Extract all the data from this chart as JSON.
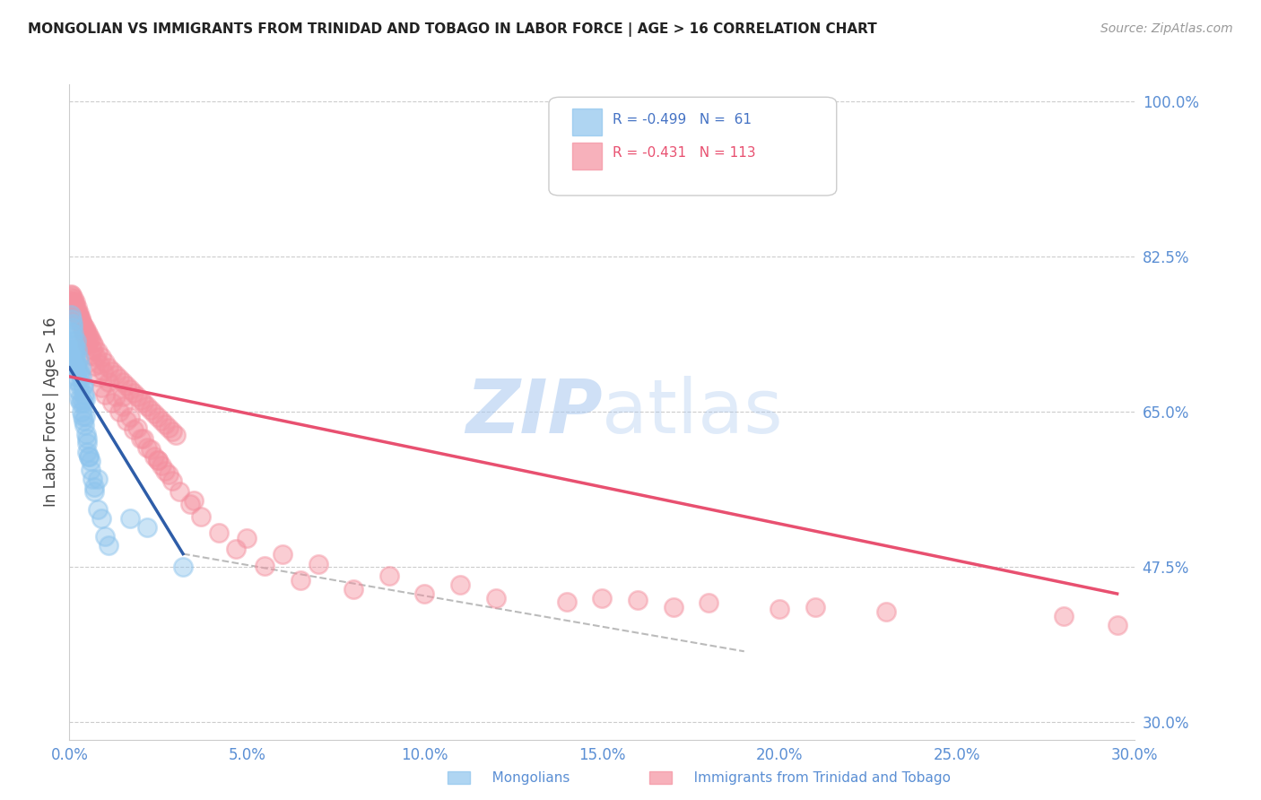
{
  "title": "MONGOLIAN VS IMMIGRANTS FROM TRINIDAD AND TOBAGO IN LABOR FORCE | AGE > 16 CORRELATION CHART",
  "source": "Source: ZipAtlas.com",
  "ylabel": "In Labor Force | Age > 16",
  "xlim": [
    0.0,
    0.3
  ],
  "ylim": [
    0.28,
    1.02
  ],
  "yticks": [
    0.3,
    0.475,
    0.65,
    0.825,
    1.0
  ],
  "ytick_labels": [
    "30.0%",
    "47.5%",
    "65.0%",
    "82.5%",
    "100.0%"
  ],
  "xticks": [
    0.0,
    0.05,
    0.1,
    0.15,
    0.2,
    0.25,
    0.3
  ],
  "xtick_labels": [
    "0.0%",
    "5.0%",
    "10.0%",
    "15.0%",
    "20.0%",
    "25.0%",
    "30.0%"
  ],
  "legend_R1": "-0.499",
  "legend_N1": "61",
  "legend_R2": "-0.431",
  "legend_N2": "113",
  "color_mongolian": "#8DC4ED",
  "color_trinidad": "#F4909F",
  "color_axis_labels": "#5B8FD4",
  "mongolian_x": [
    0.001,
    0.0012,
    0.0015,
    0.0018,
    0.002,
    0.0022,
    0.0025,
    0.0028,
    0.003,
    0.0032,
    0.0035,
    0.0038,
    0.004,
    0.0042,
    0.0045,
    0.0005,
    0.0008,
    0.001,
    0.0013,
    0.0016,
    0.0019,
    0.0022,
    0.0025,
    0.0028,
    0.0031,
    0.0034,
    0.0037,
    0.004,
    0.0043,
    0.0046,
    0.005,
    0.0055,
    0.006,
    0.0065,
    0.007,
    0.0015,
    0.002,
    0.0025,
    0.003,
    0.0035,
    0.004,
    0.0045,
    0.005,
    0.0055,
    0.006,
    0.007,
    0.008,
    0.009,
    0.01,
    0.011,
    0.0003,
    0.0006,
    0.0009,
    0.0012,
    0.0015,
    0.0018,
    0.005,
    0.008,
    0.017,
    0.022,
    0.032
  ],
  "mongolian_y": [
    0.75,
    0.73,
    0.72,
    0.71,
    0.73,
    0.72,
    0.7,
    0.71,
    0.695,
    0.7,
    0.69,
    0.68,
    0.68,
    0.67,
    0.665,
    0.74,
    0.735,
    0.72,
    0.71,
    0.7,
    0.69,
    0.685,
    0.675,
    0.665,
    0.66,
    0.65,
    0.645,
    0.64,
    0.635,
    0.625,
    0.615,
    0.6,
    0.595,
    0.575,
    0.56,
    0.72,
    0.705,
    0.695,
    0.68,
    0.665,
    0.66,
    0.645,
    0.62,
    0.6,
    0.585,
    0.565,
    0.54,
    0.53,
    0.51,
    0.5,
    0.76,
    0.755,
    0.745,
    0.738,
    0.725,
    0.715,
    0.605,
    0.575,
    0.53,
    0.52,
    0.475
  ],
  "trinidad_x": [
    0.0005,
    0.001,
    0.0015,
    0.002,
    0.0025,
    0.003,
    0.0035,
    0.004,
    0.0045,
    0.005,
    0.0055,
    0.006,
    0.0065,
    0.007,
    0.008,
    0.009,
    0.01,
    0.011,
    0.012,
    0.013,
    0.014,
    0.015,
    0.016,
    0.017,
    0.018,
    0.019,
    0.02,
    0.021,
    0.022,
    0.023,
    0.024,
    0.025,
    0.026,
    0.027,
    0.028,
    0.029,
    0.03,
    0.001,
    0.002,
    0.003,
    0.004,
    0.005,
    0.006,
    0.007,
    0.008,
    0.009,
    0.01,
    0.012,
    0.014,
    0.016,
    0.018,
    0.02,
    0.022,
    0.024,
    0.026,
    0.028,
    0.0005,
    0.0015,
    0.0025,
    0.0035,
    0.0045,
    0.0055,
    0.0065,
    0.0075,
    0.0085,
    0.0095,
    0.011,
    0.013,
    0.015,
    0.017,
    0.019,
    0.021,
    0.023,
    0.025,
    0.027,
    0.029,
    0.031,
    0.034,
    0.037,
    0.042,
    0.047,
    0.055,
    0.065,
    0.08,
    0.1,
    0.12,
    0.14,
    0.17,
    0.2,
    0.23,
    0.0008,
    0.0012,
    0.0018,
    0.0022,
    0.0028,
    0.0032,
    0.0038,
    0.0042,
    0.0048,
    0.025,
    0.035,
    0.05,
    0.06,
    0.07,
    0.09,
    0.11,
    0.15,
    0.18,
    0.21,
    0.16,
    0.015,
    0.28,
    0.295
  ],
  "trinidad_y": [
    0.78,
    0.775,
    0.77,
    0.765,
    0.76,
    0.756,
    0.752,
    0.748,
    0.744,
    0.74,
    0.736,
    0.732,
    0.728,
    0.724,
    0.718,
    0.712,
    0.706,
    0.7,
    0.696,
    0.692,
    0.688,
    0.684,
    0.68,
    0.676,
    0.672,
    0.668,
    0.664,
    0.66,
    0.656,
    0.652,
    0.648,
    0.644,
    0.64,
    0.636,
    0.632,
    0.628,
    0.624,
    0.775,
    0.762,
    0.75,
    0.738,
    0.726,
    0.714,
    0.702,
    0.69,
    0.678,
    0.67,
    0.66,
    0.65,
    0.64,
    0.63,
    0.62,
    0.61,
    0.6,
    0.59,
    0.58,
    0.783,
    0.772,
    0.761,
    0.75,
    0.74,
    0.73,
    0.72,
    0.712,
    0.704,
    0.696,
    0.684,
    0.668,
    0.656,
    0.644,
    0.632,
    0.62,
    0.608,
    0.596,
    0.584,
    0.572,
    0.56,
    0.546,
    0.532,
    0.514,
    0.496,
    0.476,
    0.46,
    0.45,
    0.445,
    0.44,
    0.436,
    0.43,
    0.428,
    0.425,
    0.782,
    0.778,
    0.774,
    0.768,
    0.762,
    0.756,
    0.748,
    0.742,
    0.736,
    0.596,
    0.55,
    0.508,
    0.49,
    0.478,
    0.465,
    0.455,
    0.44,
    0.435,
    0.43,
    0.438,
    0.668,
    0.42,
    0.41
  ],
  "regression_mongolian_x0": 0.0,
  "regression_mongolian_x1": 0.032,
  "regression_mongolian_y0": 0.7,
  "regression_mongolian_y1": 0.49,
  "regression_mongolian_dash_x1": 0.19,
  "regression_mongolian_dash_y1": 0.38,
  "regression_trinidad_x0": 0.0,
  "regression_trinidad_x1": 0.295,
  "regression_trinidad_y0": 0.69,
  "regression_trinidad_y1": 0.445
}
